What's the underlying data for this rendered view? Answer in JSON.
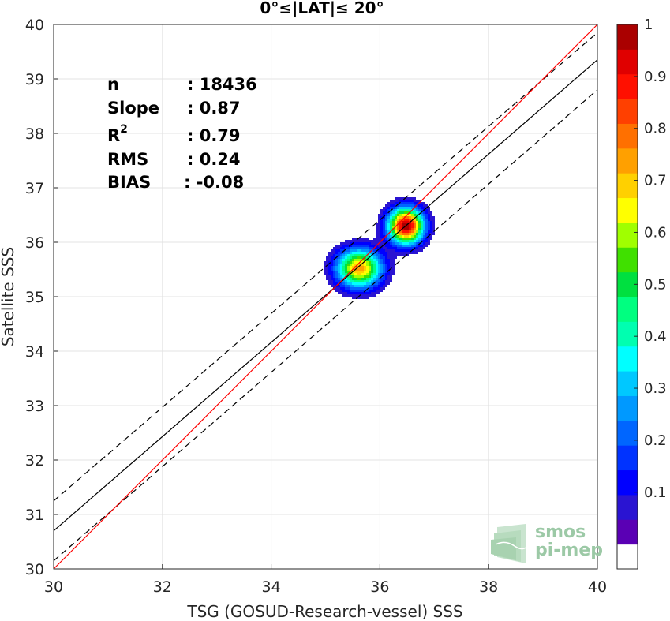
{
  "chart_data": {
    "type": "scatter",
    "title": "0°≤|LAT|≤ 20°",
    "xlabel": "TSG (GOSUD-Research-vessel) SSS",
    "ylabel": "Satellite SSS",
    "xlim": [
      30,
      40
    ],
    "ylim": [
      30,
      40
    ],
    "xticks": [
      "30",
      "32",
      "34",
      "36",
      "38",
      "40"
    ],
    "yticks": [
      "30",
      "31",
      "32",
      "33",
      "34",
      "35",
      "36",
      "37",
      "38",
      "39",
      "40"
    ],
    "grid": true,
    "stats": [
      {
        "label": "n",
        "value": ": 18436"
      },
      {
        "label": "Slope",
        "value": ": 0.87"
      },
      {
        "label": "R",
        "sup": "2",
        "value": ": 0.79"
      },
      {
        "label": "RMS",
        "value": ": 0.24"
      },
      {
        "label": "BIAS",
        "value": ": -0.08"
      }
    ],
    "identity_line": {
      "color": "#ff0000",
      "x": [
        30,
        40
      ],
      "y": [
        30,
        40
      ]
    },
    "regression_line": {
      "color": "#000000",
      "x": [
        30,
        40
      ],
      "y": [
        30.7,
        39.35
      ]
    },
    "confidence_upper": {
      "x": [
        30,
        40
      ],
      "y": [
        31.25,
        39.85
      ]
    },
    "confidence_lower": {
      "x": [
        30,
        40
      ],
      "y": [
        30.15,
        38.8
      ]
    },
    "density_peaks": [
      {
        "x": 36.48,
        "y": 36.3,
        "sx": 0.22,
        "sy": 0.22,
        "amp": 1.0
      },
      {
        "x": 35.62,
        "y": 35.52,
        "sx": 0.28,
        "sy": 0.24,
        "amp": 0.74
      }
    ],
    "colorbar": {
      "ticks": [
        "0.1",
        "0.2",
        "0.3",
        "0.4",
        "0.5",
        "0.6",
        "0.7",
        "0.8",
        "0.9",
        "1"
      ],
      "tick_values": [
        0.1,
        0.2,
        0.3,
        0.4,
        0.5,
        0.6,
        0.7,
        0.8,
        0.9,
        1.0
      ],
      "colors": [
        "#ffffff",
        "#5a00b4",
        "#2a14d2",
        "#0000ff",
        "#0033ff",
        "#0066ff",
        "#0099ff",
        "#00c8ff",
        "#00ffff",
        "#00ffb0",
        "#00ff80",
        "#00e040",
        "#40e000",
        "#a0ff00",
        "#ffff00",
        "#ffd000",
        "#ffa000",
        "#ff7000",
        "#ff4000",
        "#ff1000",
        "#e00000",
        "#aa0000"
      ]
    },
    "logo": {
      "line1": "smos",
      "line2": "pi-mep"
    }
  }
}
